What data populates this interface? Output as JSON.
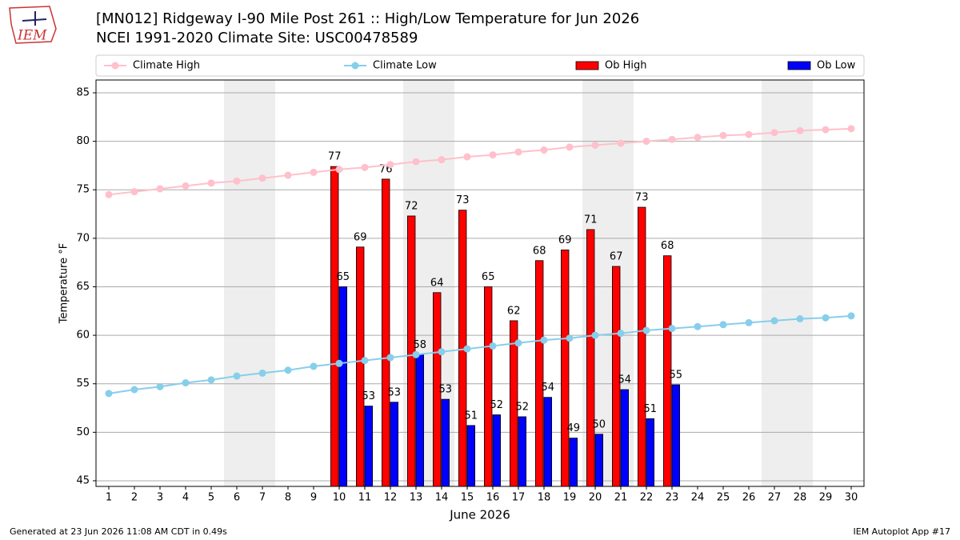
{
  "chart_data": {
    "type": "bar_line",
    "logo": "IEM",
    "title": "[MN012] Ridgeway I-90 Mile Post 261 :: High/Low Temperature for Jun 2026",
    "subtitle": "NCEI 1991-2020 Climate Site: USC00478589",
    "xlabel": "June 2026",
    "ylabel": "Temperature °F",
    "footer_left": "Generated at 23 Jun 2026 11:08 AM CDT in 0.49s",
    "footer_right": "IEM Autoplot App #17",
    "x": [
      1,
      2,
      3,
      4,
      5,
      6,
      7,
      8,
      9,
      10,
      11,
      12,
      13,
      14,
      15,
      16,
      17,
      18,
      19,
      20,
      21,
      22,
      23,
      24,
      25,
      26,
      27,
      28,
      29,
      30
    ],
    "xlim": [
      0.5,
      30.5
    ],
    "xticks": [
      1,
      2,
      3,
      4,
      5,
      6,
      7,
      8,
      9,
      10,
      11,
      12,
      13,
      14,
      15,
      16,
      17,
      18,
      19,
      20,
      21,
      22,
      23,
      24,
      25,
      26,
      27,
      28,
      29,
      30
    ],
    "ylim": [
      44.42,
      86.32
    ],
    "yticks": [
      45,
      50,
      55,
      60,
      65,
      70,
      75,
      80,
      85
    ],
    "grid": true,
    "shade_color": "#eeeeee",
    "shaded_x": [
      [
        5.5,
        7.5
      ],
      [
        12.5,
        14.5
      ],
      [
        19.5,
        21.5
      ],
      [
        26.5,
        28.5
      ]
    ],
    "legend": "top-outside",
    "series": [
      {
        "name": "Climate High",
        "kind": "line",
        "color": "#ffc0cb",
        "values": [
          74.5,
          74.8,
          75.1,
          75.4,
          75.7,
          75.9,
          76.2,
          76.5,
          76.8,
          77.1,
          77.3,
          77.6,
          77.9,
          78.1,
          78.4,
          78.6,
          78.9,
          79.1,
          79.4,
          79.6,
          79.8,
          80.0,
          80.2,
          80.4,
          80.6,
          80.7,
          80.9,
          81.1,
          81.2,
          81.3
        ]
      },
      {
        "name": "Climate Low",
        "kind": "line",
        "color": "#87ceeb",
        "values": [
          54.0,
          54.4,
          54.7,
          55.1,
          55.4,
          55.8,
          56.1,
          56.4,
          56.8,
          57.1,
          57.4,
          57.7,
          58.0,
          58.3,
          58.6,
          58.9,
          59.2,
          59.5,
          59.7,
          60.0,
          60.2,
          60.5,
          60.7,
          60.9,
          61.1,
          61.3,
          61.5,
          61.7,
          61.8,
          62.0
        ]
      },
      {
        "name": "Ob High",
        "kind": "bar",
        "color": "#ff0000",
        "values": [
          null,
          null,
          null,
          null,
          null,
          null,
          null,
          null,
          null,
          77.4,
          69.1,
          76.1,
          72.3,
          64.4,
          72.9,
          65.0,
          61.5,
          67.7,
          68.8,
          70.9,
          67.1,
          73.2,
          68.2,
          null,
          null,
          null,
          null,
          null,
          null,
          null
        ],
        "value_labels": [
          null,
          null,
          null,
          null,
          null,
          null,
          null,
          null,
          null,
          "77",
          "69",
          "76",
          "72",
          "64",
          "73",
          "65",
          "62",
          "68",
          "69",
          "71",
          "67",
          "73",
          "68",
          null,
          null,
          null,
          null,
          null,
          null,
          null
        ]
      },
      {
        "name": "Ob Low",
        "kind": "bar",
        "color": "#0000ff",
        "values": [
          null,
          null,
          null,
          null,
          null,
          null,
          null,
          null,
          null,
          65.0,
          52.7,
          53.1,
          58.0,
          53.4,
          50.7,
          51.8,
          51.6,
          53.6,
          49.4,
          49.8,
          54.4,
          51.4,
          54.9,
          null,
          null,
          null,
          null,
          null,
          null,
          null
        ],
        "value_labels": [
          null,
          null,
          null,
          null,
          null,
          null,
          null,
          null,
          null,
          "65",
          "53",
          "53",
          "58",
          "53",
          "51",
          "52",
          "52",
          "54",
          "49",
          "50",
          "54",
          "51",
          "55",
          null,
          null,
          null,
          null,
          null,
          null,
          null
        ]
      }
    ]
  }
}
